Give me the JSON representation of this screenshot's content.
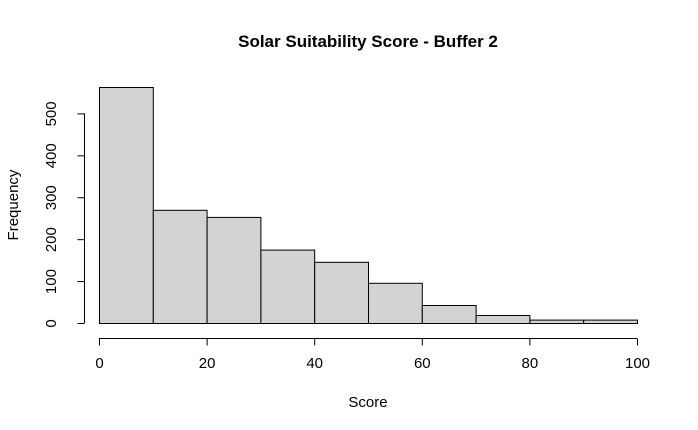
{
  "chart_data": {
    "type": "bar",
    "title": "Solar Suitability Score - Buffer 2",
    "xlabel": "Score",
    "ylabel": "Frequency",
    "bins": [
      {
        "from": 0,
        "to": 10,
        "count": 563
      },
      {
        "from": 10,
        "to": 20,
        "count": 270
      },
      {
        "from": 20,
        "to": 30,
        "count": 253
      },
      {
        "from": 30,
        "to": 40,
        "count": 175
      },
      {
        "from": 40,
        "to": 50,
        "count": 146
      },
      {
        "from": 50,
        "to": 60,
        "count": 96
      },
      {
        "from": 60,
        "to": 70,
        "count": 43
      },
      {
        "from": 70,
        "to": 80,
        "count": 19
      },
      {
        "from": 80,
        "to": 90,
        "count": 8
      },
      {
        "from": 90,
        "to": 100,
        "count": 8
      }
    ],
    "xlim": [
      0,
      100
    ],
    "ylim": [
      0,
      563
    ],
    "x_ticks": [
      0,
      20,
      40,
      60,
      80,
      100
    ],
    "y_ticks": [
      0,
      100,
      200,
      300,
      400,
      500
    ],
    "grid": false,
    "legend": "none",
    "colors": {
      "bar_fill": "#d3d3d3",
      "bar_stroke": "#000000"
    }
  }
}
